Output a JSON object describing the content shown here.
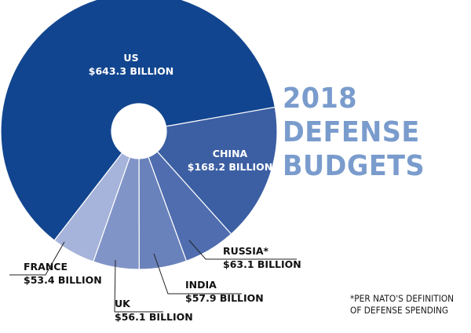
{
  "title_lines": [
    "2018",
    "DEFENSE",
    "BUDGETS"
  ],
  "footnote_lines": [
    "*PER NATO'S DEFINITION",
    "OF DEFENSE SPENDING"
  ],
  "chart_data": {
    "type": "pie",
    "style": "donut",
    "title": "2018 DEFENSE BUDGETS",
    "unit": "billion USD",
    "slices": [
      {
        "label": "US",
        "value": 643.3,
        "value_label": "$643.3 BILLION",
        "color": "#12458f"
      },
      {
        "label": "CHINA",
        "value": 168.2,
        "value_label": "$168.2 BILLION",
        "color": "#3c5fa3"
      },
      {
        "label": "RUSSIA*",
        "value": 63.1,
        "value_label": "$63.1 BILLION",
        "color": "#4f6daf"
      },
      {
        "label": "INDIA",
        "value": 57.9,
        "value_label": "$57.9 BILLION",
        "color": "#6a82bc"
      },
      {
        "label": "UK",
        "value": 56.1,
        "value_label": "$56.1 BILLION",
        "color": "#8094c7"
      },
      {
        "label": "FRANCE",
        "value": 53.4,
        "value_label": "$53.4 BILLION",
        "color": "#a6b3da"
      }
    ]
  }
}
